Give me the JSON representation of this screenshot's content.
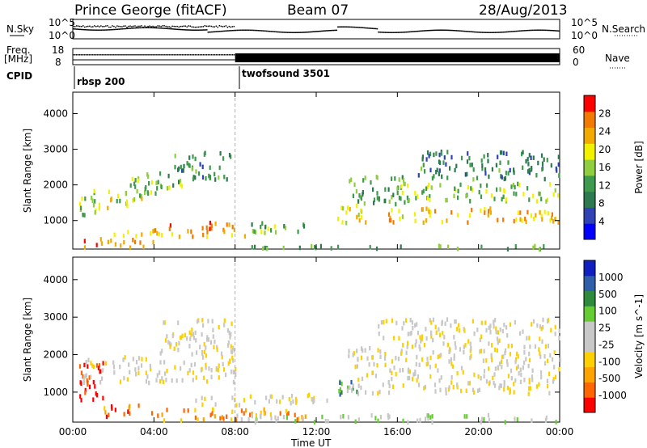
{
  "header": {
    "station": "Prince George (fitACF)",
    "beam": "Beam 07",
    "date": "28/Aug/2013"
  },
  "top_panels": {
    "nsky_label": "N.Sky",
    "nsearch_label": "N.Search",
    "noise_ticks": [
      "10^5",
      "10^0"
    ],
    "freq_label_1": "Freq.",
    "freq_label_2": "[MHz]",
    "freq_ticks": [
      "18",
      "8"
    ],
    "nave_label": "Nave",
    "nave_ticks": [
      "60",
      "0"
    ],
    "cpid_label": "CPID",
    "cpid_segments": [
      {
        "name": "rbsp 200",
        "start_hour": 0.0
      },
      {
        "name": "twofsound 3501",
        "start_hour": 8.0
      }
    ]
  },
  "colors": {
    "power_scale": [
      "#0000ff",
      "#2f43b4",
      "#2d7a51",
      "#3e9a4d",
      "#8fce3e",
      "#f2f200",
      "#f2aa00",
      "#f27a00",
      "#ff0000"
    ],
    "velocity_scale": [
      "#ff0000",
      "#ff6600",
      "#ffa300",
      "#ffd000",
      "#c8c8c8",
      "#c8c8c8",
      "#66cc33",
      "#2e8b3c",
      "#2f5fa8",
      "#1020c0"
    ],
    "axis": "#000000",
    "dashed_line": "#b0b0b0"
  },
  "chart_data": [
    {
      "type": "heatmap",
      "title": "Power",
      "xlabel": "Time UT",
      "ylabel": "Slant Range [km]",
      "xlim": [
        0,
        24
      ],
      "ylim": [
        200,
        4600
      ],
      "yticks": [
        1000,
        2000,
        3000,
        4000
      ],
      "xticks": [
        "00:00",
        "04:00",
        "08:00",
        "12:00",
        "16:00",
        "20:00",
        "00:00"
      ],
      "colorbar_label": "Power [dB]",
      "colorbar_ticks": [
        "28",
        "24",
        "20",
        "16",
        "12",
        "8",
        "4"
      ],
      "scatter_bands": [
        {
          "t": [
            0.3,
            1.2
          ],
          "r": [
            1200,
            1800
          ],
          "level": 0.5
        },
        {
          "t": [
            0.8,
            3.6
          ],
          "r": [
            1400,
            1900
          ],
          "level": 0.55
        },
        {
          "t": [
            2.5,
            5.5
          ],
          "r": [
            1800,
            2400
          ],
          "level": 0.45
        },
        {
          "t": [
            5.0,
            7.8
          ],
          "r": [
            2200,
            3000
          ],
          "level": 0.35
        },
        {
          "t": [
            0.5,
            4.0
          ],
          "r": [
            300,
            550
          ],
          "level": 0.85
        },
        {
          "t": [
            2.0,
            8.5
          ],
          "r": [
            600,
            800
          ],
          "level": 0.7
        },
        {
          "t": [
            4.5,
            8.0
          ],
          "r": [
            800,
            1000
          ],
          "level": 0.8
        },
        {
          "t": [
            8.5,
            12.0
          ],
          "r": [
            700,
            1000
          ],
          "level": 0.45
        },
        {
          "t": [
            13.0,
            14.5
          ],
          "r": [
            900,
            1500
          ],
          "level": 0.6
        },
        {
          "t": [
            13.5,
            16.5
          ],
          "r": [
            1500,
            2300
          ],
          "level": 0.4
        },
        {
          "t": [
            15.5,
            24.0
          ],
          "r": [
            1000,
            1400
          ],
          "level": 0.7
        },
        {
          "t": [
            16.0,
            24.0
          ],
          "r": [
            1600,
            2100
          ],
          "level": 0.5
        },
        {
          "t": [
            17.0,
            24.0
          ],
          "r": [
            2200,
            3000
          ],
          "level": 0.3
        },
        {
          "t": [
            8.0,
            24.0
          ],
          "r": [
            250,
            350
          ],
          "level": 0.4
        }
      ]
    },
    {
      "type": "heatmap",
      "title": "Velocity",
      "xlabel": "Time UT",
      "ylabel": "Slant Range [km]",
      "xlim": [
        0,
        24
      ],
      "ylim": [
        200,
        4600
      ],
      "yticks": [
        1000,
        2000,
        3000,
        4000
      ],
      "xticks": [
        "00:00",
        "04:00",
        "08:00",
        "12:00",
        "16:00",
        "20:00",
        "00:00"
      ],
      "colorbar_label": "Velocity [m s^-1]",
      "colorbar_ticks": [
        "1000",
        "500",
        "100",
        "25",
        "-25",
        "-100",
        "-500",
        "-1000"
      ],
      "scatter_bands": [
        {
          "t": [
            0.3,
            1.5
          ],
          "r": [
            700,
            2000
          ],
          "level": 0.05
        },
        {
          "t": [
            1.5,
            4.0
          ],
          "r": [
            400,
            700
          ],
          "level": 0.2
        },
        {
          "t": [
            0.5,
            8.0
          ],
          "r": [
            1300,
            2000
          ],
          "level": 0.45
        },
        {
          "t": [
            4.0,
            8.0
          ],
          "r": [
            2000,
            3000
          ],
          "level": 0.45
        },
        {
          "t": [
            4.0,
            12.0
          ],
          "r": [
            300,
            600
          ],
          "level": 0.25
        },
        {
          "t": [
            6.0,
            12.5
          ],
          "r": [
            700,
            1000
          ],
          "level": 0.45
        },
        {
          "t": [
            13.0,
            14.0
          ],
          "r": [
            900,
            1500
          ],
          "level": 0.75
        },
        {
          "t": [
            13.5,
            24.0
          ],
          "r": [
            1000,
            2300
          ],
          "level": 0.45
        },
        {
          "t": [
            15.0,
            24.0
          ],
          "r": [
            2300,
            3000
          ],
          "level": 0.45
        },
        {
          "t": [
            8.0,
            24.0
          ],
          "r": [
            250,
            450
          ],
          "level": 0.55
        }
      ]
    }
  ]
}
